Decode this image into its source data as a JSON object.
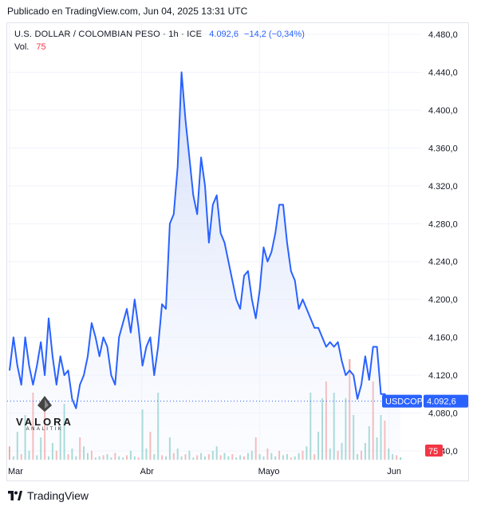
{
  "header": {
    "published": "Publicado en TradingView.com, Jun 04, 2025 13:31 UTC"
  },
  "legend": {
    "symbol": "U.S. DOLLAR / COLOMBIAN PESO · 1h · ICE",
    "price": "4.092,6",
    "change": "−14,2 (−0,34%)",
    "vol_label": "Vol.",
    "vol_value": "75"
  },
  "price_tag": {
    "ticker": "USDCOP",
    "value": "4.092,6",
    "color": "#2962ff"
  },
  "vol_tag": {
    "value": "75",
    "color": "#f23645"
  },
  "watermark": {
    "name": "VALORA",
    "sub": "ANALITIK"
  },
  "footer": {
    "brand": "TradingView"
  },
  "colors": {
    "line": "#2962ff",
    "fill": "#e3e9fb",
    "vol_up": "#26a69a",
    "vol_down": "#ef5350"
  },
  "chart_data": {
    "type": "area",
    "title": "",
    "xlabel": "",
    "ylabel": "",
    "ylim": [
      4040,
      4480
    ],
    "y_ticks": [
      "4.480,0",
      "4.440,0",
      "4.400,0",
      "4.360,0",
      "4.320,0",
      "4.280,0",
      "4.240,0",
      "4.200,0",
      "4.160,0",
      "4.120,0",
      "4.080,0",
      "4.040,0"
    ],
    "y_tick_values": [
      4480,
      4440,
      4400,
      4360,
      4320,
      4280,
      4240,
      4200,
      4160,
      4120,
      4080,
      4040
    ],
    "x_ticks": [
      "Mar",
      "Abr",
      "Mayo",
      "Jun"
    ],
    "x_tick_positions": [
      0,
      0.338,
      0.64,
      0.97
    ],
    "grid": true,
    "series": [
      {
        "name": "USDCOP",
        "x": [
          0,
          0.01,
          0.02,
          0.03,
          0.04,
          0.05,
          0.06,
          0.07,
          0.08,
          0.09,
          0.1,
          0.11,
          0.12,
          0.13,
          0.14,
          0.15,
          0.16,
          0.17,
          0.18,
          0.19,
          0.2,
          0.21,
          0.22,
          0.23,
          0.24,
          0.25,
          0.26,
          0.27,
          0.28,
          0.29,
          0.3,
          0.31,
          0.32,
          0.33,
          0.34,
          0.35,
          0.36,
          0.37,
          0.38,
          0.39,
          0.4,
          0.41,
          0.42,
          0.43,
          0.44,
          0.45,
          0.46,
          0.47,
          0.48,
          0.49,
          0.5,
          0.51,
          0.52,
          0.53,
          0.54,
          0.55,
          0.56,
          0.57,
          0.58,
          0.59,
          0.6,
          0.61,
          0.62,
          0.63,
          0.64,
          0.65,
          0.66,
          0.67,
          0.68,
          0.69,
          0.7,
          0.71,
          0.72,
          0.73,
          0.74,
          0.75,
          0.76,
          0.77,
          0.78,
          0.79,
          0.8,
          0.81,
          0.82,
          0.83,
          0.84,
          0.85,
          0.86,
          0.87,
          0.88,
          0.89,
          0.9,
          0.91,
          0.92,
          0.93,
          0.94,
          0.95,
          0.96,
          0.97,
          0.98,
          0.99,
          1.0
        ],
        "values": [
          4125,
          4160,
          4130,
          4110,
          4160,
          4130,
          4110,
          4130,
          4155,
          4120,
          4180,
          4140,
          4110,
          4140,
          4120,
          4125,
          4095,
          4085,
          4110,
          4120,
          4140,
          4175,
          4160,
          4140,
          4160,
          4150,
          4120,
          4110,
          4160,
          4175,
          4190,
          4165,
          4200,
          4170,
          4130,
          4150,
          4160,
          4120,
          4150,
          4195,
          4190,
          4280,
          4290,
          4340,
          4440,
          4390,
          4350,
          4310,
          4290,
          4350,
          4320,
          4260,
          4300,
          4310,
          4270,
          4260,
          4240,
          4220,
          4200,
          4190,
          4225,
          4230,
          4200,
          4180,
          4210,
          4255,
          4240,
          4250,
          4270,
          4300,
          4300,
          4260,
          4230,
          4220,
          4190,
          4200,
          4190,
          4180,
          4170,
          4170,
          4160,
          4150,
          4155,
          4150,
          4155,
          4135,
          4120,
          4125,
          4120,
          4095,
          4110,
          4140,
          4115,
          4150,
          4150,
          4100,
          4100,
          4092.6,
          4092.6,
          4092.6,
          4092.6
        ]
      }
    ],
    "volume": [
      12,
      3,
      25,
      5,
      40,
      8,
      60,
      4,
      20,
      55,
      3,
      15,
      8,
      30,
      50,
      5,
      10,
      3,
      20,
      12,
      6,
      8,
      2,
      3,
      4,
      5,
      2,
      6,
      3,
      2,
      4,
      8,
      3,
      2,
      45,
      10,
      25,
      5,
      60,
      4,
      3,
      20,
      6,
      10,
      3,
      5,
      8,
      2,
      4,
      6,
      3,
      5,
      8,
      12,
      4,
      6,
      3,
      5,
      2,
      4,
      3,
      6,
      8,
      20,
      5,
      3,
      10,
      6,
      3,
      8,
      4,
      5,
      2,
      3,
      6,
      8,
      12,
      60,
      5,
      25,
      55,
      70,
      10,
      60,
      8,
      15,
      55,
      90,
      40,
      5,
      8,
      15,
      30,
      70,
      20,
      40,
      35,
      10,
      5,
      4,
      2
    ]
  }
}
